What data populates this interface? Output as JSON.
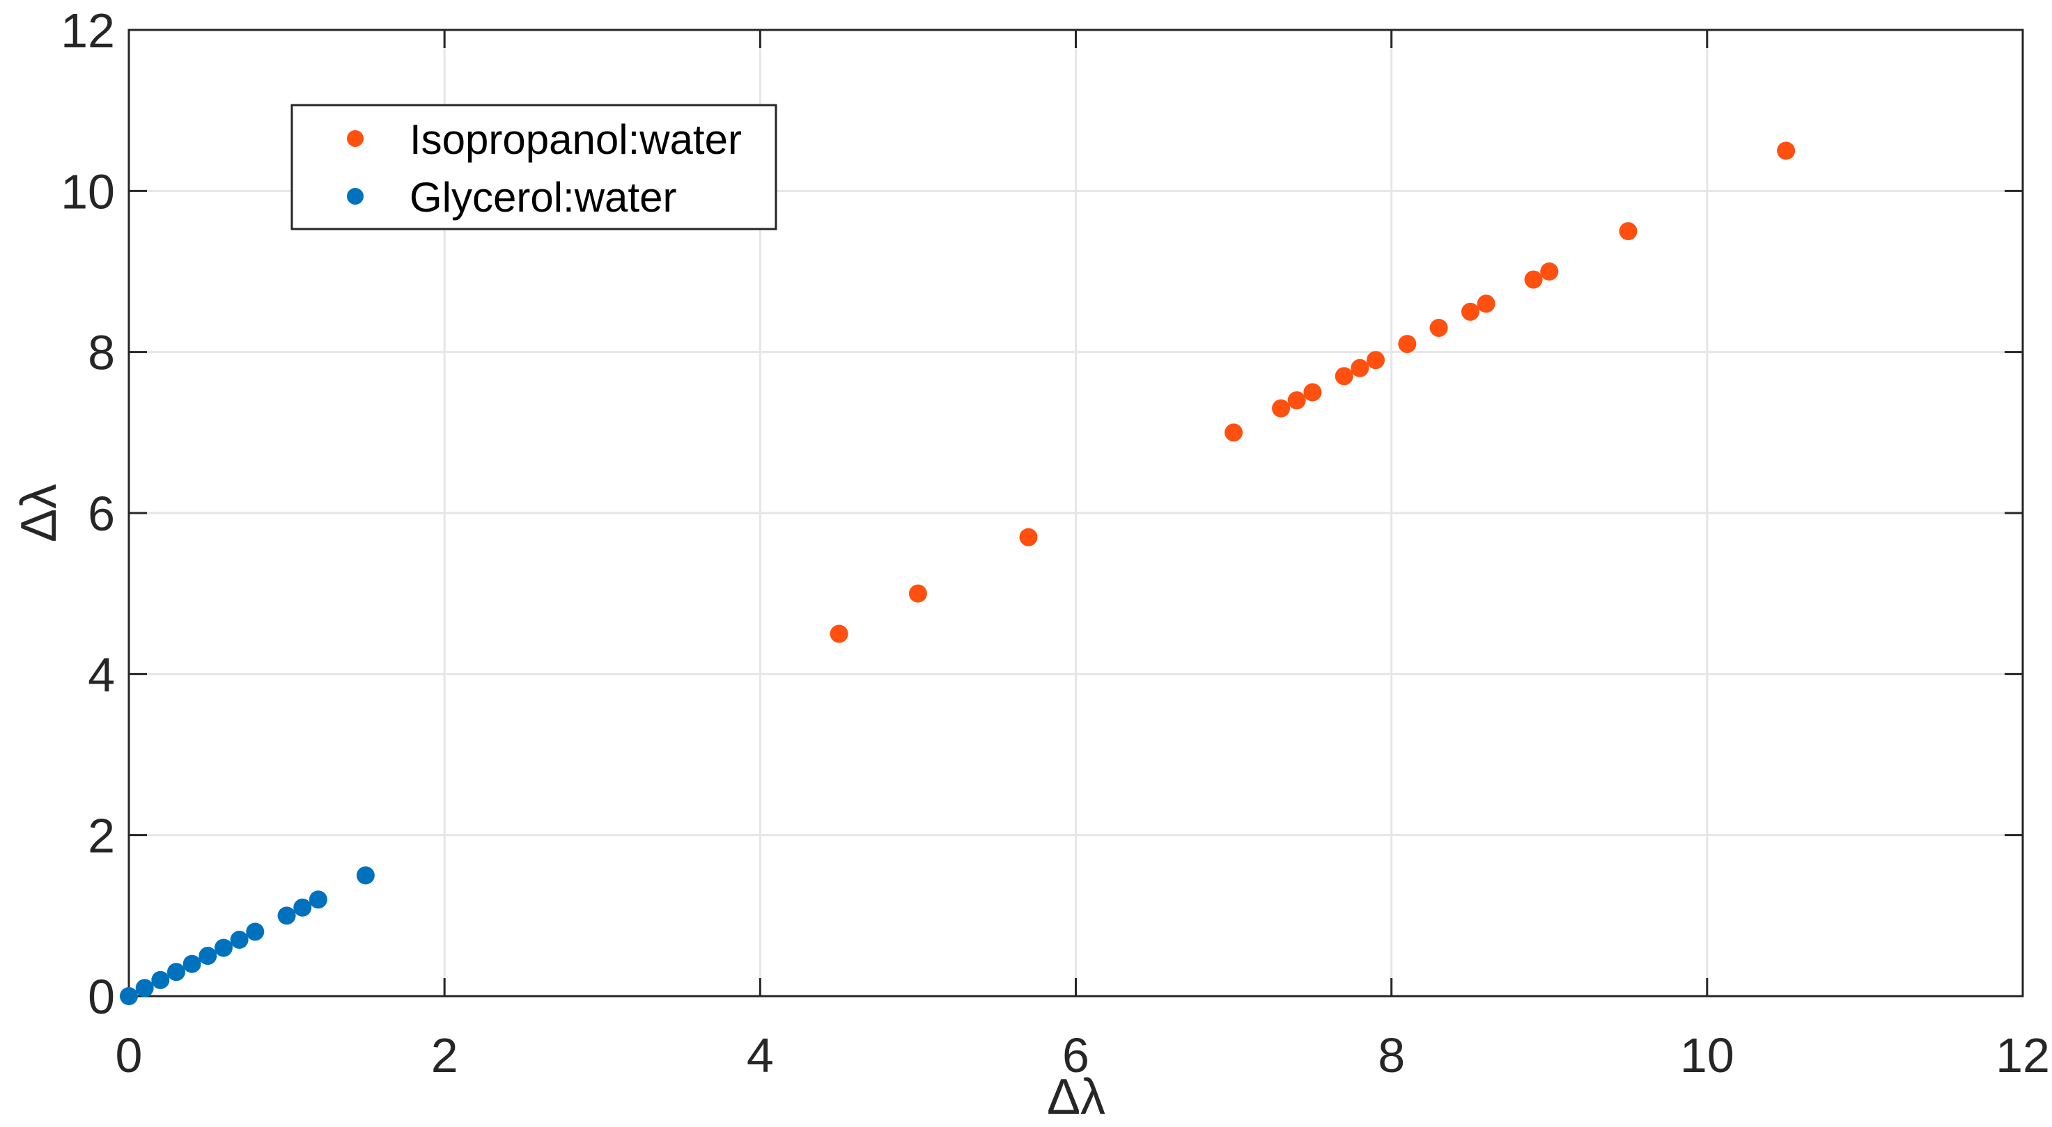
{
  "chart_data": {
    "type": "scatter",
    "xlabel": "Δλ",
    "ylabel": "Δλ",
    "xlim": [
      0,
      12
    ],
    "ylim": [
      0,
      12
    ],
    "xticks": [
      "0",
      "2",
      "4",
      "6",
      "8",
      "10",
      "12"
    ],
    "yticks": [
      "0",
      "2",
      "4",
      "6",
      "8",
      "10",
      "12"
    ],
    "grid": true,
    "legend_position": "top-left",
    "series": [
      {
        "name": "Isopropanol:water",
        "color": "#FF5010",
        "x": [
          4.5,
          5.0,
          5.7,
          7.0,
          7.3,
          7.4,
          7.5,
          7.7,
          7.8,
          7.9,
          8.1,
          8.3,
          8.5,
          8.6,
          8.9,
          9.0,
          9.5,
          10.5
        ],
        "y": [
          4.5,
          5.0,
          5.7,
          7.0,
          7.3,
          7.4,
          7.5,
          7.7,
          7.8,
          7.9,
          8.1,
          8.3,
          8.5,
          8.6,
          8.9,
          9.0,
          9.5,
          10.5
        ]
      },
      {
        "name": "Glycerol:water",
        "color": "#0072BD",
        "x": [
          0,
          0.1,
          0.2,
          0.3,
          0.4,
          0.5,
          0.6,
          0.7,
          0.8,
          1.0,
          1.1,
          1.2,
          1.5
        ],
        "y": [
          0,
          0.1,
          0.2,
          0.3,
          0.4,
          0.5,
          0.6,
          0.7,
          0.8,
          1.0,
          1.1,
          1.2,
          1.5
        ]
      }
    ]
  }
}
